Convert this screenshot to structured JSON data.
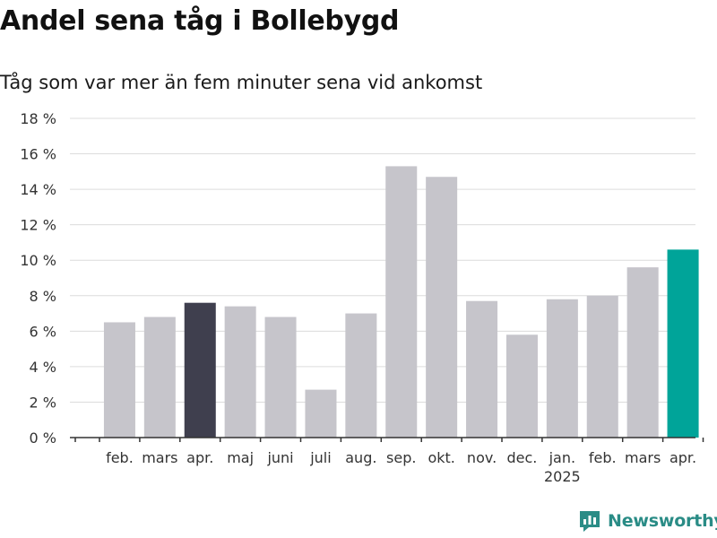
{
  "title": "Andel sena tåg i Bollebygd",
  "subtitle": "Tåg som var mer än fem minuter sena vid ankomst",
  "brand": {
    "name": "Newsworthy",
    "icon": "newsworthy-logo-icon",
    "color": "#2a8c86"
  },
  "chart_data": {
    "type": "bar",
    "title": "Andel sena tåg i Bollebygd",
    "subtitle": "Tåg som var mer än fem minuter sena vid ankomst",
    "categories": [
      "feb.",
      "mars",
      "apr.",
      "maj",
      "juni",
      "juli",
      "aug.",
      "sep.",
      "okt.",
      "nov.",
      "dec.",
      "jan.",
      "feb.",
      "mars",
      "apr."
    ],
    "year_labels": [
      "",
      "",
      "",
      "",
      "",
      "",
      "",
      "",
      "",
      "",
      "",
      "2025",
      "",
      "",
      ""
    ],
    "values": [
      6.5,
      6.8,
      7.6,
      7.4,
      6.8,
      2.7,
      7.0,
      15.3,
      14.7,
      7.7,
      5.8,
      7.8,
      8.0,
      9.6,
      10.6
    ],
    "highlight_colors": {
      "default": "#c6c5cb",
      "comparison": "#3f3f4e",
      "current": "#00a499"
    },
    "bar_roles": [
      "default",
      "default",
      "comparison",
      "default",
      "default",
      "default",
      "default",
      "default",
      "default",
      "default",
      "default",
      "default",
      "default",
      "default",
      "current"
    ],
    "ylim": [
      0,
      18
    ],
    "yticks": [
      0,
      2,
      4,
      6,
      8,
      10,
      12,
      14,
      16,
      18
    ],
    "ytick_labels": [
      "0 %",
      "2 %",
      "4 %",
      "6 %",
      "8 %",
      "10 %",
      "12 %",
      "14 %",
      "16 %",
      "18 %"
    ],
    "xlabel": "",
    "ylabel": "",
    "grid": true,
    "legend": "none"
  }
}
